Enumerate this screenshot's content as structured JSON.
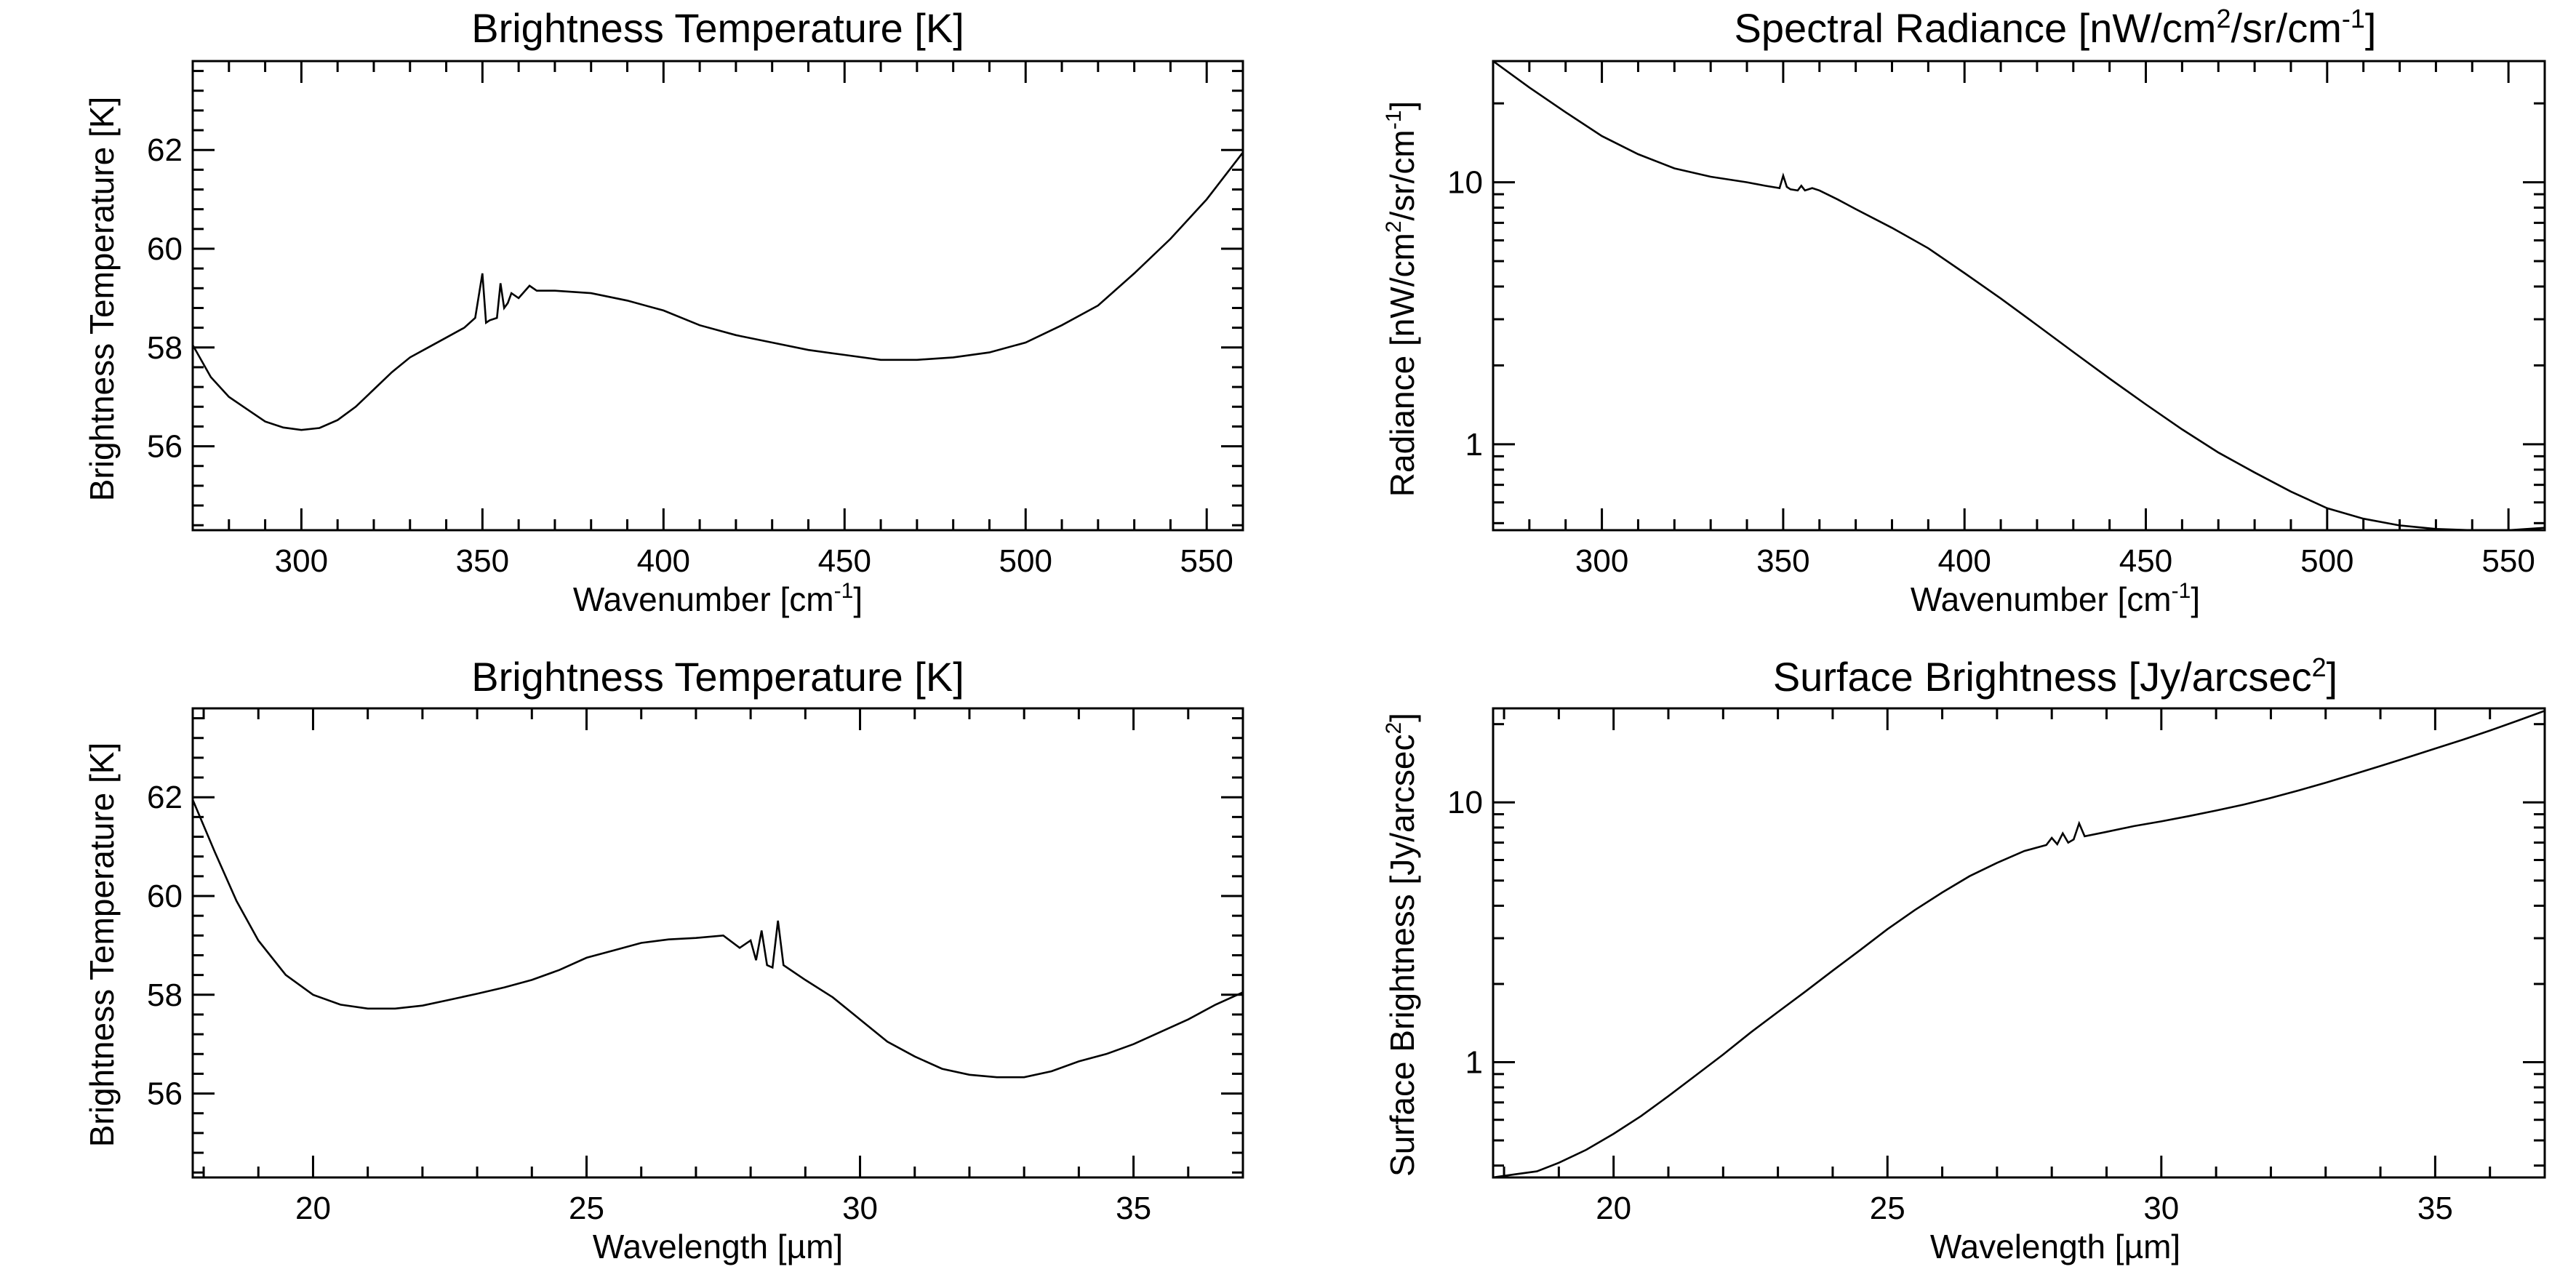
{
  "chart_data": [
    {
      "type": "line",
      "title": "Brightness Temperature [K]",
      "xlabel": "Wavenumber [cm-1]",
      "ylabel": "Brightness Temperature [K]",
      "xlim": [
        270,
        560
      ],
      "ylim": [
        54.3,
        63.8
      ],
      "yscale": "linear",
      "xticks": [
        300,
        350,
        400,
        450,
        500,
        550
      ],
      "xtick_labels": [
        "300",
        "350",
        "400",
        "450",
        "500",
        "550"
      ],
      "yticks": [
        56,
        58,
        60,
        62
      ],
      "ytick_labels": [
        "56",
        "58",
        "60",
        "62"
      ],
      "grid": false,
      "series": [
        {
          "x": [
            270,
            275,
            280,
            285,
            290,
            295,
            300,
            305,
            310,
            315,
            320,
            325,
            330,
            335,
            340,
            345,
            348,
            350,
            351,
            352,
            354,
            355,
            356,
            357,
            358,
            360,
            363,
            365,
            370,
            380,
            390,
            400,
            410,
            420,
            430,
            440,
            450,
            460,
            470,
            480,
            490,
            500,
            510,
            520,
            530,
            540,
            550,
            560
          ],
          "y": [
            58.05,
            57.4,
            57.0,
            56.75,
            56.5,
            56.38,
            56.33,
            56.37,
            56.53,
            56.8,
            57.15,
            57.5,
            57.8,
            58.0,
            58.2,
            58.4,
            58.6,
            59.5,
            58.5,
            58.55,
            58.6,
            59.3,
            58.8,
            58.9,
            59.1,
            59.0,
            59.25,
            59.15,
            59.15,
            59.1,
            58.95,
            58.75,
            58.45,
            58.25,
            58.1,
            57.95,
            57.85,
            57.75,
            57.75,
            57.8,
            57.9,
            58.1,
            58.45,
            58.85,
            59.5,
            60.2,
            61.0,
            61.95
          ]
        }
      ]
    },
    {
      "type": "line",
      "title": "Spectral Radiance [nW/cm2/sr/cm-1]",
      "xlabel": "Wavenumber [cm-1]",
      "ylabel": "Radiance [nW/cm2/sr/cm-1]",
      "xlim": [
        270,
        560
      ],
      "ylim": [
        0.47,
        29
      ],
      "yscale": "log",
      "xticks": [
        300,
        350,
        400,
        450,
        500,
        550
      ],
      "xtick_labels": [
        "300",
        "350",
        "400",
        "450",
        "500",
        "550"
      ],
      "yticks": [
        1,
        10
      ],
      "ytick_labels": [
        "1",
        "10"
      ],
      "grid": false,
      "series": [
        {
          "x": [
            270,
            280,
            290,
            300,
            310,
            320,
            330,
            340,
            345,
            349,
            350,
            351,
            352,
            354,
            355,
            356,
            357,
            358,
            360,
            365,
            370,
            380,
            390,
            400,
            410,
            420,
            430,
            440,
            450,
            460,
            470,
            480,
            490,
            500,
            510,
            520,
            530,
            540,
            550,
            560
          ],
          "y": [
            29.0,
            23.0,
            18.5,
            15.0,
            12.8,
            11.3,
            10.5,
            10.0,
            9.7,
            9.5,
            10.6,
            9.6,
            9.4,
            9.3,
            9.7,
            9.3,
            9.4,
            9.5,
            9.3,
            8.6,
            7.9,
            6.7,
            5.6,
            4.5,
            3.6,
            2.85,
            2.25,
            1.78,
            1.42,
            1.14,
            0.93,
            0.78,
            0.66,
            0.57,
            0.52,
            0.49,
            0.475,
            0.47,
            0.47,
            0.48
          ]
        }
      ]
    },
    {
      "type": "line",
      "title": "Brightness Temperature [K]",
      "xlabel": "Wavelength [µm]",
      "ylabel": "Brightness Temperature [K]",
      "xlim": [
        17.8,
        37.0
      ],
      "ylim": [
        54.3,
        63.8
      ],
      "yscale": "linear",
      "xticks": [
        20,
        25,
        30,
        35
      ],
      "xtick_labels": [
        "20",
        "25",
        "30",
        "35"
      ],
      "yticks": [
        56,
        58,
        60,
        62
      ],
      "ytick_labels": [
        "56",
        "58",
        "60",
        "62"
      ],
      "grid": false,
      "series": [
        {
          "x": [
            17.8,
            18.2,
            18.6,
            19.0,
            19.5,
            20.0,
            20.5,
            21.0,
            21.5,
            22.0,
            22.5,
            23.0,
            23.5,
            24.0,
            24.5,
            25.0,
            25.5,
            26.0,
            26.5,
            27.0,
            27.5,
            27.8,
            28.0,
            28.1,
            28.2,
            28.3,
            28.4,
            28.5,
            28.6,
            29.0,
            29.5,
            30.0,
            30.5,
            31.0,
            31.5,
            32.0,
            32.5,
            33.0,
            33.5,
            34.0,
            34.5,
            35.0,
            35.5,
            36.0,
            36.5,
            37.0
          ],
          "y": [
            61.95,
            60.9,
            59.9,
            59.1,
            58.4,
            58.0,
            57.8,
            57.72,
            57.72,
            57.78,
            57.9,
            58.02,
            58.15,
            58.3,
            58.5,
            58.75,
            58.9,
            59.05,
            59.12,
            59.15,
            59.2,
            58.95,
            59.1,
            58.7,
            59.3,
            58.6,
            58.55,
            59.5,
            58.6,
            58.3,
            57.95,
            57.5,
            57.05,
            56.75,
            56.5,
            56.38,
            56.33,
            56.33,
            56.45,
            56.65,
            56.8,
            57.0,
            57.25,
            57.5,
            57.8,
            58.05
          ]
        }
      ]
    },
    {
      "type": "line",
      "title": "Surface Brightness [Jy/arcsec2]",
      "xlabel": "Wavelength [µm]",
      "ylabel": "Surface Brightness [Jy/arcsec2]",
      "xlim": [
        17.8,
        37.0
      ],
      "ylim": [
        0.36,
        23
      ],
      "yscale": "log",
      "xticks": [
        20,
        25,
        30,
        35
      ],
      "xtick_labels": [
        "20",
        "25",
        "30",
        "35"
      ],
      "yticks": [
        1,
        10
      ],
      "ytick_labels": [
        "1",
        "10"
      ],
      "grid": false,
      "series": [
        {
          "x": [
            17.8,
            18.2,
            18.6,
            19.0,
            19.5,
            20.0,
            20.5,
            21.0,
            21.5,
            22.0,
            22.5,
            23.0,
            23.5,
            24.0,
            24.5,
            25.0,
            25.5,
            26.0,
            26.5,
            27.0,
            27.5,
            27.9,
            28.0,
            28.1,
            28.2,
            28.3,
            28.4,
            28.5,
            28.6,
            29.0,
            29.5,
            30.0,
            30.5,
            31.0,
            31.5,
            32.0,
            32.5,
            33.0,
            33.5,
            34.0,
            34.5,
            35.0,
            35.5,
            36.0,
            36.5,
            37.0
          ],
          "y": [
            0.36,
            0.37,
            0.38,
            0.41,
            0.46,
            0.53,
            0.62,
            0.74,
            0.89,
            1.07,
            1.3,
            1.56,
            1.87,
            2.25,
            2.7,
            3.25,
            3.85,
            4.5,
            5.2,
            5.85,
            6.5,
            6.85,
            7.3,
            6.9,
            7.6,
            7.0,
            7.2,
            8.3,
            7.4,
            7.7,
            8.1,
            8.45,
            8.85,
            9.3,
            9.8,
            10.4,
            11.1,
            11.9,
            12.8,
            13.8,
            14.9,
            16.1,
            17.4,
            18.9,
            20.6,
            22.5
          ]
        }
      ]
    }
  ]
}
